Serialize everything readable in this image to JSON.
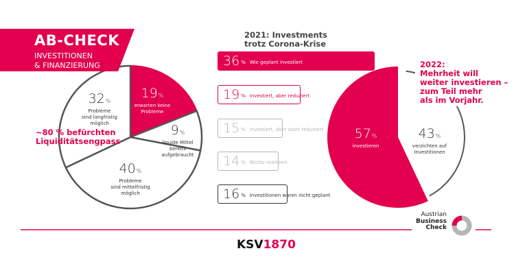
{
  "colors": {
    "accent": "#e2004f",
    "outline": "#555555",
    "muted": "#b5b5b5",
    "dark": "#333333"
  },
  "header": {
    "title": "AB-CHECK",
    "subtitle_line1": "INVESTITIONEN",
    "subtitle_line2": "& FINANZIERUNG"
  },
  "callout_left": {
    "line1": "~80 % befürchten",
    "line2": "Liquiditätsengpass"
  },
  "bars_title": {
    "line1": "2021: Investments",
    "line2": "trotz Corona-Krise"
  },
  "callout_right": {
    "line1": "2022:",
    "line2": "Mehrheit will",
    "line3": "weiter investieren –",
    "line4": "zum Teil mehr",
    "line5": "als im Vorjahr."
  },
  "footer": {
    "brand_black": "KSV",
    "brand_red": "1870",
    "logo_line1": "Austrian",
    "logo_line2": "Business",
    "logo_line3": "Check"
  },
  "chart_data": [
    {
      "type": "pie",
      "slices": [
        {
          "value": 19,
          "unit": "%",
          "label_line1": "erwarten keine",
          "label_line2": "Probleme",
          "label_line3": "",
          "highlight": true
        },
        {
          "value": 9,
          "unit": "%",
          "label_line1": "liquide Mittel",
          "label_line2": "bereits",
          "label_line3": "aufgebraucht",
          "highlight": false
        },
        {
          "value": 40,
          "unit": "%",
          "label_line1": "Probleme",
          "label_line2": "sind mittelfristig",
          "label_line3": "möglich",
          "highlight": false
        },
        {
          "value": 32,
          "unit": "%",
          "label_line1": "Probleme",
          "label_line2": "sind langfristig",
          "label_line3": "möglich",
          "highlight": false
        }
      ]
    },
    {
      "type": "bar",
      "orientation": "horizontal",
      "title": "2021: Investments trotz Corona-Krise",
      "items": [
        {
          "value": 36,
          "unit": "%",
          "label": "Wie geplant investiert",
          "style": "filled-accent"
        },
        {
          "value": 19,
          "unit": "%",
          "label": "Investiert, aber reduziert",
          "style": "outline-accent"
        },
        {
          "value": 15,
          "unit": "%",
          "label": "Investiert, aber stark reduziert",
          "style": "outline-muted"
        },
        {
          "value": 14,
          "unit": "%",
          "label": "Nichts realisiert",
          "style": "outline-muted"
        },
        {
          "value": 16,
          "unit": "%",
          "label": "Investitionen waren nicht geplant",
          "style": "outline-dark"
        }
      ]
    },
    {
      "type": "pie",
      "slices": [
        {
          "value": 57,
          "unit": "%",
          "label_line1": "investieren",
          "label_line2": "",
          "highlight": true
        },
        {
          "value": 43,
          "unit": "%",
          "label_line1": "verzichten auf",
          "label_line2": "Investitionen",
          "highlight": false
        }
      ]
    }
  ]
}
